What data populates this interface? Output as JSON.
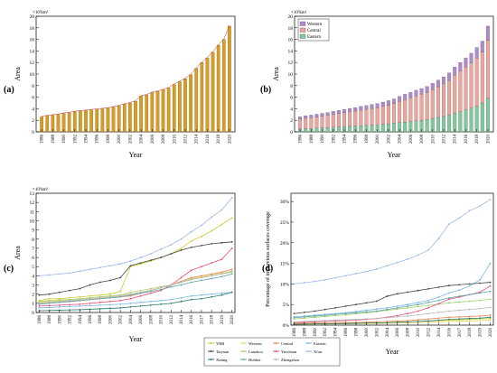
{
  "figure": {
    "panels": [
      {
        "label": "(a)",
        "xlabel": "Year",
        "ylabel": "Area",
        "unit": "×10³km²"
      },
      {
        "label": "(b)",
        "xlabel": "Year",
        "ylabel": "Area",
        "unit": "×10³km²"
      },
      {
        "label": "(c)",
        "xlabel": "Year",
        "ylabel": "Area",
        "unit": "×10³km²"
      },
      {
        "label": "(d)",
        "xlabel": "Year",
        "ylabel": "Percentage of impervious surfaces coverage",
        "unit": ""
      }
    ]
  },
  "chart_data": [
    {
      "type": "bar",
      "title": "",
      "xlabel": "Year",
      "ylabel": "Area",
      "unit": "×10³km²",
      "x": [
        1986,
        1987,
        1988,
        1989,
        1990,
        1991,
        1992,
        1993,
        1994,
        1995,
        1996,
        1997,
        1998,
        1999,
        2000,
        2001,
        2002,
        2003,
        2004,
        2005,
        2006,
        2007,
        2008,
        2009,
        2010,
        2011,
        2012,
        2013,
        2014,
        2015,
        2016,
        2017,
        2018,
        2019,
        2020
      ],
      "xticks": [
        "1986",
        "1988",
        "1990",
        "1992",
        "1994",
        "1996",
        "1998",
        "2000",
        "2002",
        "2004",
        "2006",
        "2008",
        "2010",
        "2012",
        "2014",
        "2016",
        "2018",
        "2020"
      ],
      "values": [
        2.6,
        2.8,
        2.9,
        3.0,
        3.2,
        3.3,
        3.5,
        3.6,
        3.7,
        3.8,
        3.9,
        4.0,
        4.1,
        4.3,
        4.5,
        4.8,
        5.0,
        5.3,
        6.2,
        6.4,
        6.8,
        7.0,
        7.3,
        7.6,
        8.2,
        8.7,
        9.2,
        9.9,
        11.0,
        12.0,
        12.8,
        13.8,
        15.0,
        16.0,
        18.3
      ],
      "ylim": [
        0,
        20
      ],
      "yticks": [
        0,
        2,
        4,
        6,
        8,
        10,
        12,
        14,
        16,
        18,
        20
      ],
      "color": "#d69e26"
    },
    {
      "type": "bar",
      "stacked": true,
      "title": "",
      "xlabel": "Year",
      "ylabel": "Area",
      "unit": "×10³km²",
      "x": [
        1986,
        1987,
        1988,
        1989,
        1990,
        1991,
        1992,
        1993,
        1994,
        1995,
        1996,
        1997,
        1998,
        1999,
        2000,
        2001,
        2002,
        2003,
        2004,
        2005,
        2006,
        2007,
        2008,
        2009,
        2010,
        2011,
        2012,
        2013,
        2014,
        2015,
        2016,
        2017,
        2018,
        2019,
        2020
      ],
      "xticks": [
        "1986",
        "1988",
        "1990",
        "1992",
        "1994",
        "1996",
        "1998",
        "2000",
        "2002",
        "2004",
        "2006",
        "2008",
        "2010",
        "2012",
        "2014",
        "2016",
        "2018",
        "2020"
      ],
      "legend_position": "top-left",
      "series": [
        {
          "name": "Eastern",
          "color": "#7fc99a",
          "values": [
            0.5,
            0.55,
            0.6,
            0.65,
            0.7,
            0.75,
            0.8,
            0.85,
            0.9,
            0.95,
            1.0,
            1.05,
            1.1,
            1.15,
            1.2,
            1.3,
            1.4,
            1.5,
            1.6,
            1.7,
            1.8,
            1.9,
            2.0,
            2.1,
            2.3,
            2.5,
            2.7,
            2.9,
            3.2,
            3.5,
            3.8,
            4.1,
            4.5,
            5.0,
            5.8
          ]
        },
        {
          "name": "Central",
          "color": "#eea49b",
          "values": [
            1.7,
            1.8,
            1.85,
            1.9,
            2.0,
            2.1,
            2.2,
            2.3,
            2.4,
            2.5,
            2.6,
            2.7,
            2.8,
            2.9,
            3.0,
            3.1,
            3.2,
            3.4,
            3.7,
            3.9,
            4.1,
            4.3,
            4.5,
            4.7,
            5.0,
            5.3,
            5.6,
            6.0,
            6.6,
            7.0,
            7.4,
            7.8,
            8.3,
            8.8,
            10.0
          ]
        },
        {
          "name": "Western",
          "color": "#b08ac9",
          "values": [
            0.4,
            0.45,
            0.45,
            0.5,
            0.5,
            0.5,
            0.55,
            0.55,
            0.6,
            0.6,
            0.6,
            0.65,
            0.65,
            0.7,
            0.7,
            0.75,
            0.8,
            0.8,
            0.85,
            0.9,
            0.95,
            1.0,
            1.0,
            1.05,
            1.1,
            1.15,
            1.2,
            1.3,
            1.4,
            1.5,
            1.6,
            1.7,
            1.8,
            1.9,
            2.5
          ]
        }
      ],
      "ylim": [
        0,
        20
      ],
      "yticks": [
        0,
        2,
        4,
        6,
        8,
        10,
        12,
        14,
        16,
        18,
        20
      ]
    },
    {
      "type": "line",
      "title": "",
      "xlabel": "Year",
      "ylabel": "Area",
      "unit": "×10³km²",
      "x": [
        1986,
        1988,
        1990,
        1992,
        1994,
        1996,
        1998,
        2000,
        2002,
        2004,
        2006,
        2008,
        2010,
        2012,
        2014,
        2016,
        2017,
        2018,
        2019,
        2020
      ],
      "xticks": [
        "1986",
        "1988",
        "1990",
        "1992",
        "1994",
        "1996",
        "1998",
        "2000",
        "2002",
        "2004",
        "2006",
        "2008",
        "2010",
        "2012",
        "2014",
        "2016",
        "2017",
        "2018",
        "2019",
        "2020"
      ],
      "series": [
        {
          "name": "YRB",
          "color": "#cccc33",
          "values": [
            1.3,
            1.5,
            1.5,
            1.6,
            1.7,
            1.8,
            1.9,
            2.0,
            2.3,
            5.0,
            5.3,
            5.6,
            6.0,
            6.4,
            7.0,
            7.8,
            8.3,
            8.9,
            9.6,
            10.3
          ]
        },
        {
          "name": "Western",
          "color": "#e4d46a",
          "values": [
            1.1,
            1.2,
            1.3,
            1.4,
            1.5,
            1.6,
            1.7,
            1.8,
            1.9,
            2.0,
            2.2,
            2.4,
            2.7,
            3.0,
            3.3,
            3.7,
            3.9,
            4.1,
            4.3,
            4.5
          ]
        },
        {
          "name": "Central",
          "color": "#e88a50",
          "values": [
            1.0,
            1.1,
            1.2,
            1.2,
            1.3,
            1.4,
            1.5,
            1.6,
            1.7,
            1.8,
            2.1,
            2.4,
            2.7,
            3.0,
            3.4,
            3.8,
            4.0,
            4.2,
            4.4,
            4.7
          ]
        },
        {
          "name": "Eastern",
          "color": "#7ab8e0",
          "values": [
            0.5,
            0.55,
            0.6,
            0.65,
            0.7,
            0.75,
            0.8,
            0.85,
            0.9,
            1.0,
            1.1,
            1.2,
            1.3,
            1.4,
            1.6,
            1.8,
            1.9,
            2.0,
            2.1,
            2.2
          ]
        },
        {
          "name": "Taiyuan",
          "color": "#444444",
          "values": [
            1.9,
            2.0,
            2.2,
            2.4,
            2.6,
            3.0,
            3.3,
            3.5,
            3.8,
            5.1,
            5.4,
            5.7,
            6.0,
            6.4,
            6.8,
            7.1,
            7.3,
            7.5,
            7.6,
            7.7
          ]
        },
        {
          "name": "Lanzhou",
          "color": "#a3cf6a",
          "values": [
            1.2,
            1.3,
            1.4,
            1.4,
            1.5,
            1.6,
            1.7,
            1.8,
            1.9,
            2.2,
            2.4,
            2.6,
            2.8,
            3.0,
            3.3,
            3.6,
            3.8,
            4.0,
            4.2,
            4.4
          ]
        },
        {
          "name": "Yinchuan",
          "color": "#e0507a",
          "values": [
            0.7,
            0.75,
            0.8,
            0.85,
            0.9,
            1.0,
            1.1,
            1.2,
            1.3,
            1.5,
            1.8,
            2.1,
            2.4,
            3.0,
            3.8,
            4.6,
            5.0,
            5.4,
            5.8,
            7.0
          ]
        },
        {
          "name": "Xi'an",
          "color": "#9db7e8",
          "values": [
            4.0,
            4.1,
            4.2,
            4.3,
            4.5,
            4.7,
            4.9,
            5.1,
            5.3,
            5.6,
            6.0,
            6.4,
            6.9,
            7.4,
            8.0,
            8.8,
            9.5,
            10.4,
            11.2,
            12.5
          ]
        },
        {
          "name": "Xining",
          "color": "#2a7a6a",
          "values": [
            0.2,
            0.22,
            0.25,
            0.28,
            0.3,
            0.35,
            0.4,
            0.45,
            0.5,
            0.6,
            0.7,
            0.8,
            0.9,
            1.0,
            1.2,
            1.4,
            1.5,
            1.7,
            1.9,
            2.2
          ]
        },
        {
          "name": "Hohhot",
          "color": "#5fa3a3",
          "values": [
            0.9,
            1.0,
            1.1,
            1.2,
            1.3,
            1.4,
            1.5,
            1.6,
            1.7,
            1.9,
            2.1,
            2.3,
            2.5,
            2.8,
            3.0,
            3.3,
            3.5,
            3.7,
            3.9,
            4.2
          ]
        },
        {
          "name": "Zhengzhou",
          "color": "#b8b8b8",
          "values": [
            1.0,
            1.1,
            1.2,
            1.3,
            1.4,
            1.5,
            1.6,
            1.7,
            1.8,
            2.0,
            2.2,
            2.4,
            2.7,
            3.0,
            3.3,
            3.6,
            3.8,
            4.0,
            4.2,
            4.5
          ]
        }
      ],
      "ylim": [
        0,
        13
      ],
      "yticks": [
        0,
        1,
        2,
        3,
        4,
        5,
        6,
        7,
        8,
        9,
        10,
        11,
        12,
        13
      ]
    },
    {
      "type": "line",
      "title": "",
      "xlabel": "Year",
      "ylabel": "Percentage of impervious surfaces coverage",
      "x": [
        1986,
        1988,
        1990,
        1992,
        1994,
        1996,
        1998,
        2000,
        2002,
        2004,
        2006,
        2008,
        2010,
        2012,
        2014,
        2016,
        2017,
        2018,
        2019,
        2020
      ],
      "xticks": [
        "1986",
        "1988",
        "1990",
        "1992",
        "1994",
        "1996",
        "1998",
        "2000",
        "2002",
        "2004",
        "2006",
        "2008",
        "2010",
        "2012",
        "2014",
        "2016",
        "2017",
        "2018",
        "2019",
        "2020"
      ],
      "series": [
        {
          "name": "YRB",
          "color": "#cccc33",
          "values": [
            0.3,
            0.3,
            0.35,
            0.35,
            0.4,
            0.4,
            0.45,
            0.45,
            0.5,
            0.6,
            0.7,
            0.8,
            0.9,
            1.0,
            1.1,
            1.2,
            1.3,
            1.4,
            1.5,
            1.6
          ]
        },
        {
          "name": "Western",
          "color": "#e4d46a",
          "values": [
            0.2,
            0.2,
            0.25,
            0.25,
            0.3,
            0.3,
            0.35,
            0.35,
            0.4,
            0.45,
            0.5,
            0.55,
            0.6,
            0.7,
            0.8,
            0.9,
            1.0,
            1.0,
            1.1,
            1.2
          ]
        },
        {
          "name": "Central",
          "color": "#e88a50",
          "values": [
            0.4,
            0.45,
            0.5,
            0.5,
            0.55,
            0.6,
            0.65,
            0.7,
            0.8,
            0.9,
            1.0,
            1.1,
            1.3,
            1.5,
            1.7,
            1.9,
            2.0,
            2.1,
            2.2,
            2.4
          ]
        },
        {
          "name": "Eastern",
          "color": "#7ab8e0",
          "values": [
            2.0,
            2.2,
            2.4,
            2.6,
            2.8,
            3.0,
            3.3,
            3.6,
            3.9,
            4.2,
            4.6,
            5.0,
            5.5,
            6.0,
            6.8,
            7.8,
            8.5,
            9.5,
            11.0,
            15.0
          ]
        },
        {
          "name": "Taiyuan",
          "color": "#444444",
          "values": [
            2.8,
            3.1,
            3.4,
            3.8,
            4.2,
            4.6,
            5.0,
            5.4,
            5.8,
            7.0,
            7.6,
            8.0,
            8.4,
            8.8,
            9.2,
            9.6,
            9.8,
            10.0,
            10.2,
            10.4
          ]
        },
        {
          "name": "Lanzhou",
          "color": "#a3cf6a",
          "values": [
            1.5,
            1.7,
            1.9,
            2.1,
            2.3,
            2.5,
            2.8,
            3.0,
            3.3,
            3.6,
            3.9,
            4.2,
            4.5,
            4.8,
            5.1,
            5.4,
            5.6,
            5.8,
            6.0,
            6.3
          ]
        },
        {
          "name": "Yinchuan",
          "color": "#e0507a",
          "values": [
            0.6,
            0.7,
            0.8,
            0.9,
            1.0,
            1.1,
            1.2,
            1.4,
            1.6,
            1.9,
            2.3,
            2.8,
            3.4,
            4.2,
            5.2,
            6.3,
            6.8,
            7.4,
            8.0,
            9.5
          ]
        },
        {
          "name": "Xi'an",
          "color": "#9db7e8",
          "values": [
            10.0,
            10.3,
            10.6,
            11.0,
            11.5,
            12.0,
            12.5,
            13.0,
            13.6,
            14.4,
            15.2,
            16.0,
            17.0,
            18.2,
            21.0,
            24.5,
            26.0,
            27.8,
            28.9,
            30.5
          ]
        },
        {
          "name": "Xining",
          "color": "#2a7a6a",
          "values": [
            0.2,
            0.25,
            0.3,
            0.3,
            0.35,
            0.4,
            0.45,
            0.5,
            0.55,
            0.6,
            0.7,
            0.8,
            0.9,
            1.0,
            1.2,
            1.4,
            1.5,
            1.6,
            1.7,
            1.9
          ]
        },
        {
          "name": "Hohhot",
          "color": "#5fa3a3",
          "values": [
            1.8,
            2.0,
            2.2,
            2.4,
            2.6,
            2.8,
            3.0,
            3.2,
            3.4,
            3.8,
            4.2,
            4.6,
            5.0,
            5.5,
            6.0,
            6.6,
            7.0,
            7.4,
            7.8,
            8.2
          ]
        },
        {
          "name": "Zhengzhou",
          "color": "#b8b8b8",
          "values": [
            0.8,
            0.9,
            1.0,
            1.1,
            1.2,
            1.3,
            1.4,
            1.5,
            1.6,
            1.8,
            2.0,
            2.2,
            2.5,
            2.8,
            3.1,
            3.4,
            3.6,
            3.8,
            4.0,
            4.3
          ]
        }
      ],
      "ylim": [
        0,
        32
      ],
      "yticks": [
        "0%",
        "5%",
        "10%",
        "15%",
        "20%",
        "25%",
        "30%"
      ],
      "shared_legend": true
    }
  ]
}
